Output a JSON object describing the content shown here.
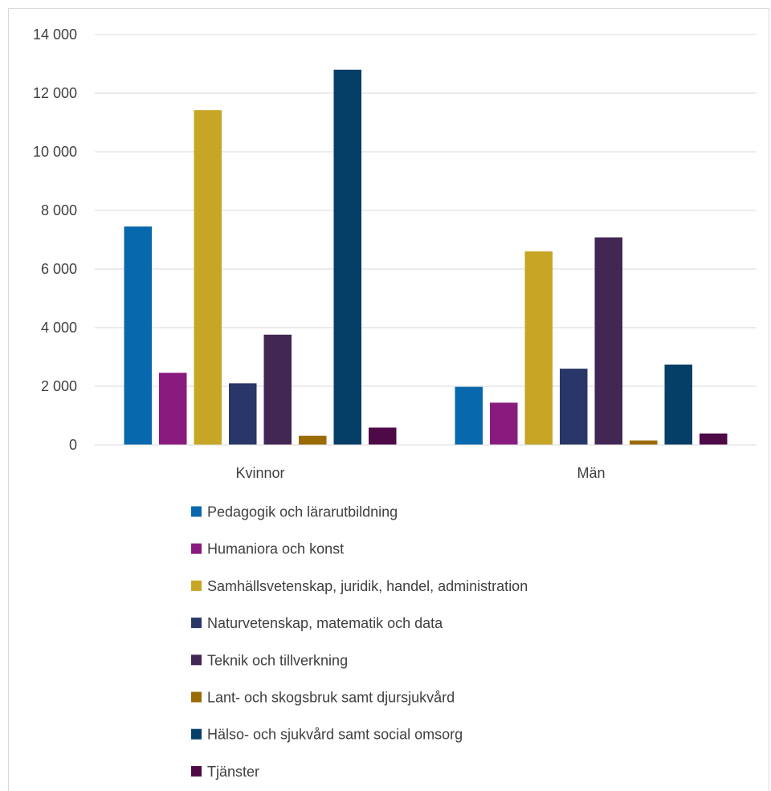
{
  "chart_data": {
    "type": "bar",
    "title": "",
    "xlabel": "",
    "ylabel": "",
    "categories": [
      "Kvinnor",
      "Män"
    ],
    "ylim": [
      0,
      14000
    ],
    "yticks": [
      0,
      2000,
      4000,
      6000,
      8000,
      10000,
      12000,
      14000
    ],
    "ytick_labels": [
      "0",
      "2 000",
      "4 000",
      "6 000",
      "8 000",
      "10 000",
      "12 000",
      "14 000"
    ],
    "grid": true,
    "legend_position": "bottom",
    "series": [
      {
        "name": "Pedagogik och lärarutbildning",
        "color": "#0868AD",
        "values": [
          7450,
          1980
        ]
      },
      {
        "name": "Humaniora och konst",
        "color": "#8A1B7E",
        "values": [
          2460,
          1440
        ]
      },
      {
        "name": "Samhällsvetenskap, juridik, handel, administration",
        "color": "#C8A625",
        "values": [
          11420,
          6600
        ]
      },
      {
        "name": "Naturvetenskap, matematik och data",
        "color": "#283768",
        "values": [
          2100,
          2600
        ]
      },
      {
        "name": "Teknik och tillverkning",
        "color": "#422654",
        "values": [
          3760,
          7080
        ]
      },
      {
        "name": "Lant- och skogsbruk samt djursjukvård",
        "color": "#9A6A05",
        "values": [
          310,
          150
        ]
      },
      {
        "name": "Hälso- och sjukvård samt social omsorg",
        "color": "#053F67",
        "values": [
          12800,
          2740
        ]
      },
      {
        "name": "Tjänster",
        "color": "#4D0A47",
        "values": [
          590,
          390
        ]
      }
    ]
  }
}
